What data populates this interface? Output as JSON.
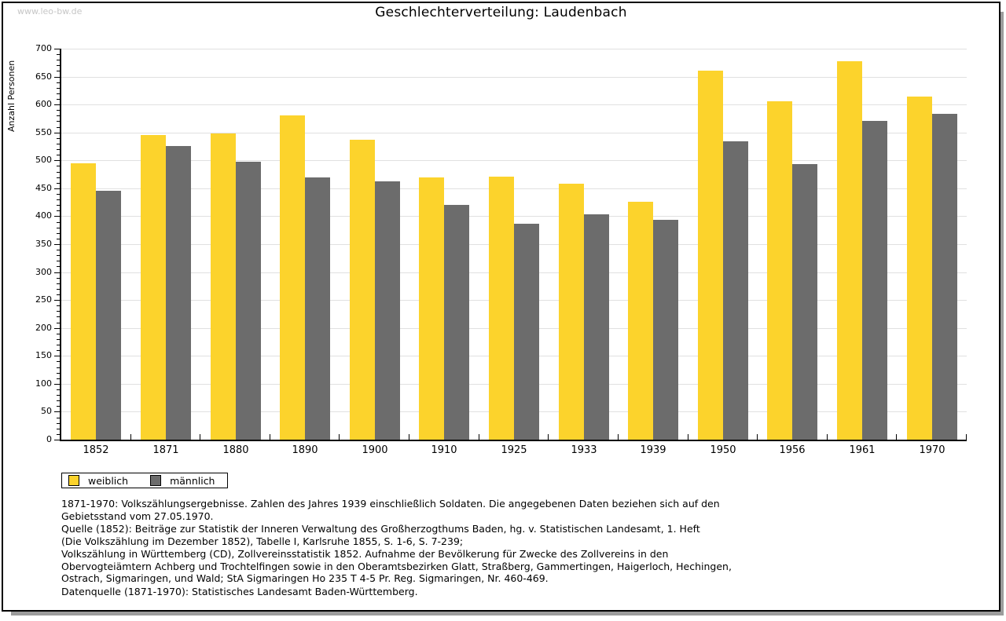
{
  "watermark": "www.leo-bw.de",
  "title": "Geschlechterverteilung: Laudenbach",
  "chart_data": {
    "type": "bar",
    "title": "Geschlechterverteilung: Laudenbach",
    "xlabel": "",
    "ylabel": "Anzahl Personen",
    "ylim": [
      0,
      700
    ],
    "ytick_step": 50,
    "ytick_minor_step": 10,
    "grid": true,
    "legend_position": "bottom-left",
    "categories": [
      "1852",
      "1871",
      "1880",
      "1890",
      "1900",
      "1910",
      "1925",
      "1933",
      "1939",
      "1950",
      "1956",
      "1961",
      "1970"
    ],
    "series": [
      {
        "name": "weiblich",
        "color": "#fcd32c",
        "values": [
          495,
          545,
          548,
          580,
          537,
          470,
          471,
          458,
          426,
          660,
          606,
          678,
          614
        ]
      },
      {
        "name": "männlich",
        "color": "#6c6c6c",
        "values": [
          445,
          525,
          498,
          470,
          462,
          420,
          387,
          403,
          393,
          534,
          493,
          571,
          583
        ]
      }
    ]
  },
  "colors": {
    "grid": "#e0e0e0",
    "axis": "#000000",
    "frame_shadow": "#9c9c9c",
    "watermark": "#c6c6c6"
  },
  "footnotes": {
    "lines": [
      "1871-1970: Volkszählungsergebnisse. Zahlen des Jahres 1939 einschließlich Soldaten. Die angegebenen Daten beziehen sich auf den",
      "Gebietsstand vom 27.05.1970.",
      "Quelle (1852): Beiträge zur Statistik der Inneren Verwaltung des Großherzogthums Baden, hg. v. Statistischen Landesamt, 1. Heft",
      "(Die Volkszählung im Dezember 1852), Tabelle I, Karlsruhe 1855, S. 1-6, S. 7-239;",
      "Volkszählung in Württemberg (CD), Zollvereinsstatistik 1852. Aufnahme der Bevölkerung für Zwecke des Zollvereins in den",
      "Obervogteiämtern Achberg und Trochtelfingen sowie in den Oberamtsbezirken Glatt, Straßberg, Gammertingen, Haigerloch, Hechingen,",
      "Ostrach, Sigmaringen, und Wald; StA Sigmaringen Ho 235 T 4-5 Pr. Reg. Sigmaringen, Nr. 460-469."
    ],
    "datasource": "Datenquelle (1871-1970): Statistisches Landesamt Baden-Württemberg."
  }
}
